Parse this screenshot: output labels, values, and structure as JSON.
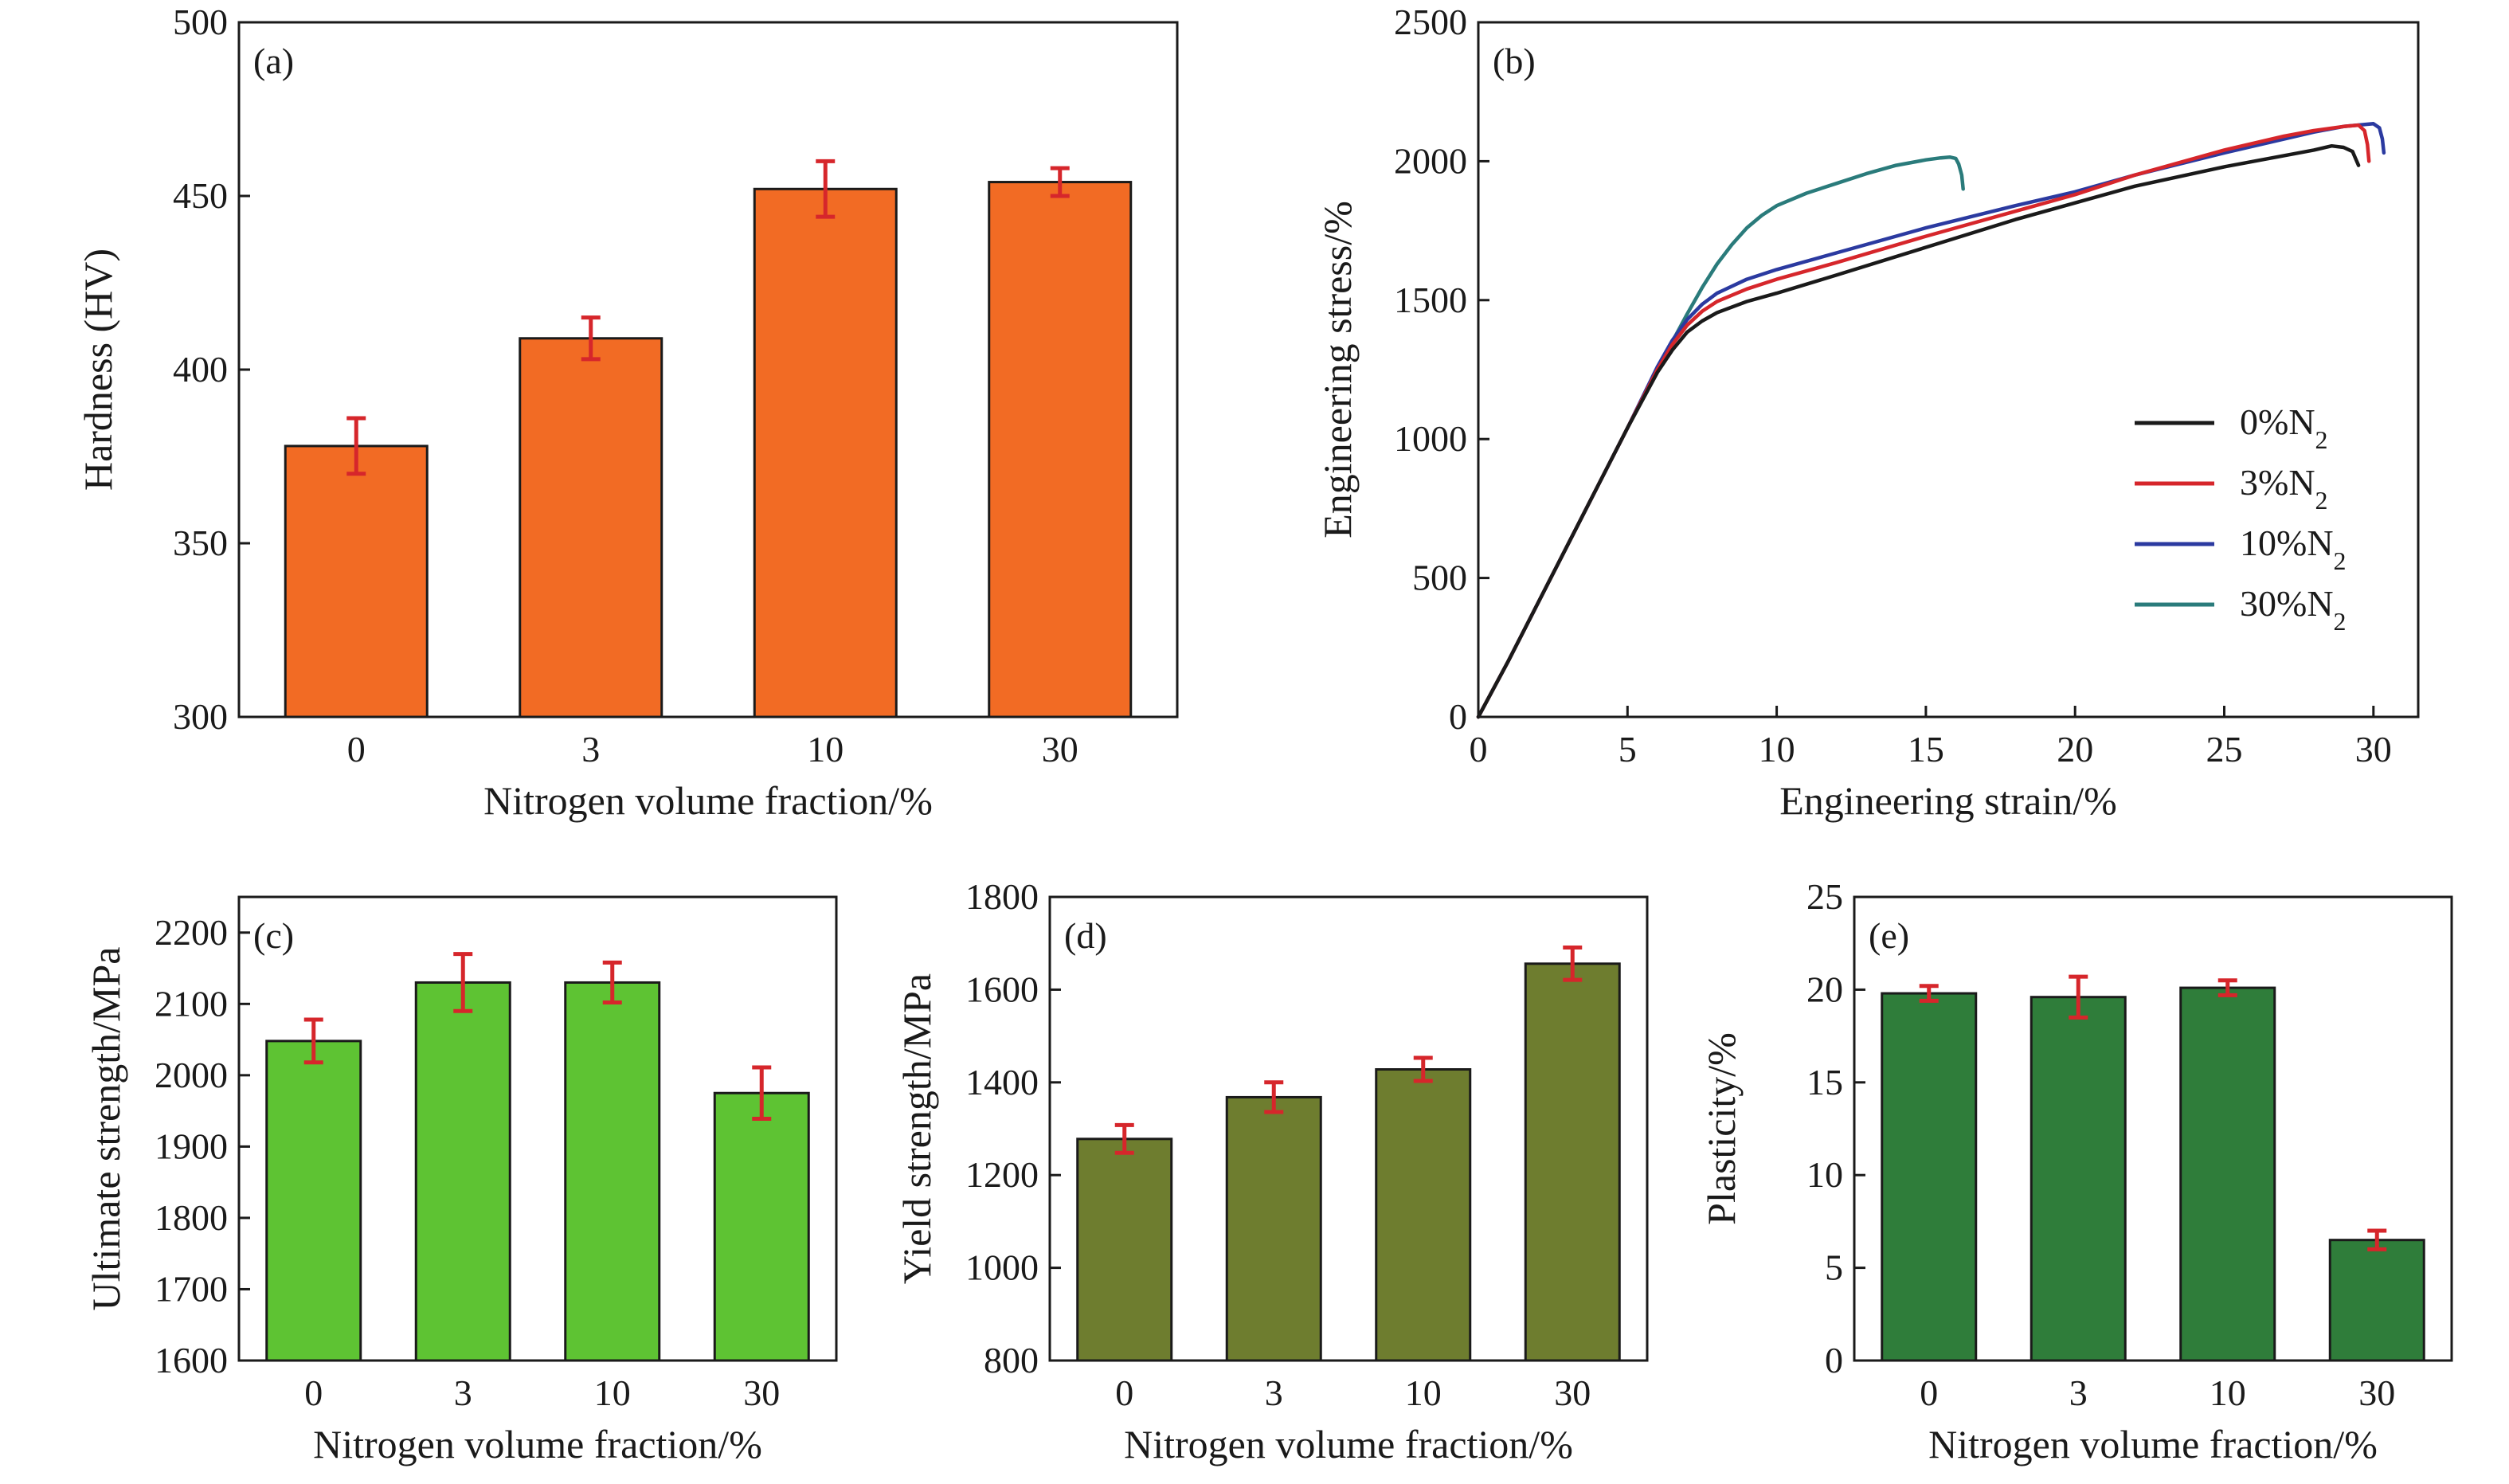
{
  "chart_data": [
    {
      "panel": "(a)",
      "type": "bar",
      "categories": [
        "0",
        "3",
        "10",
        "30"
      ],
      "values": [
        378,
        409,
        452,
        454
      ],
      "errors": [
        8,
        6,
        8,
        4
      ],
      "xlabel": "Nitrogen volume fraction/%",
      "ylabel": "Hardness (HV)",
      "ylim": [
        300,
        500
      ],
      "yticks": [
        300,
        350,
        400,
        450,
        500
      ],
      "bar_color": "#f26b24"
    },
    {
      "panel": "(b)",
      "type": "line",
      "xlabel": "Engineering strain/%",
      "ylabel": "Engineering stress/%",
      "xlim": [
        0,
        31.5
      ],
      "ylim": [
        0,
        2500
      ],
      "xticks": [
        0,
        5,
        10,
        15,
        20,
        25,
        30
      ],
      "yticks": [
        0,
        500,
        1000,
        1500,
        2000,
        2500
      ],
      "legend_position": "lower-right",
      "series": [
        {
          "name": "0%N₂",
          "color": "#1a1a1a",
          "x": [
            0,
            1,
            2,
            3,
            4,
            5,
            6,
            6.5,
            7,
            7.5,
            8,
            9,
            10,
            12,
            15,
            18,
            20,
            22,
            25,
            27,
            28,
            28.6,
            29.0,
            29.3,
            29.4,
            29.5
          ],
          "y": [
            0,
            200,
            410,
            620,
            830,
            1040,
            1240,
            1320,
            1385,
            1425,
            1455,
            1495,
            1525,
            1590,
            1690,
            1790,
            1850,
            1910,
            1980,
            2020,
            2040,
            2055,
            2050,
            2035,
            2010,
            1985
          ]
        },
        {
          "name": "3%N₂",
          "color": "#d6262b",
          "x": [
            0,
            1,
            2,
            3,
            4,
            5,
            6,
            6.5,
            7,
            7.5,
            8,
            9,
            10,
            12,
            15,
            18,
            20,
            22,
            25,
            27,
            28,
            29,
            29.5,
            29.7,
            29.8,
            29.85
          ],
          "y": [
            0,
            200,
            410,
            620,
            830,
            1040,
            1250,
            1340,
            1410,
            1460,
            1495,
            1540,
            1575,
            1635,
            1730,
            1820,
            1880,
            1950,
            2040,
            2090,
            2110,
            2125,
            2130,
            2110,
            2060,
            2000
          ]
        },
        {
          "name": "10%N₂",
          "color": "#2b3aa0",
          "x": [
            0,
            1,
            2,
            3,
            4,
            5,
            6,
            6.5,
            7,
            7.5,
            8,
            9,
            10,
            12,
            15,
            18,
            20,
            22,
            25,
            27,
            28,
            29,
            30,
            30.2,
            30.3,
            30.35
          ],
          "y": [
            0,
            200,
            410,
            620,
            830,
            1040,
            1260,
            1355,
            1430,
            1485,
            1525,
            1575,
            1610,
            1670,
            1760,
            1840,
            1890,
            1950,
            2030,
            2080,
            2105,
            2125,
            2135,
            2120,
            2080,
            2030
          ]
        },
        {
          "name": "30%N₂",
          "color": "#2a7b7b",
          "x": [
            0,
            1,
            2,
            3,
            4,
            5,
            6,
            6.5,
            7,
            7.5,
            8,
            8.5,
            9,
            9.5,
            10,
            11,
            12,
            13,
            14,
            15,
            15.5,
            15.8,
            16.0,
            16.1,
            16.2,
            16.25
          ],
          "y": [
            0,
            200,
            410,
            620,
            830,
            1040,
            1250,
            1350,
            1450,
            1545,
            1630,
            1700,
            1760,
            1805,
            1840,
            1885,
            1920,
            1955,
            1985,
            2005,
            2012,
            2015,
            2010,
            1990,
            1950,
            1900
          ]
        }
      ]
    },
    {
      "panel": "(c)",
      "type": "bar",
      "categories": [
        "0",
        "3",
        "10",
        "30"
      ],
      "values": [
        2048,
        2130,
        2130,
        1975
      ],
      "errors": [
        30,
        40,
        28,
        36
      ],
      "xlabel": "Nitrogen volume fraction/%",
      "ylabel": "Ultimate strength/MPa",
      "ylim": [
        1600,
        2250
      ],
      "yticks": [
        1600,
        1700,
        1800,
        1900,
        2000,
        2100,
        2200
      ],
      "bar_color": "#5ec333"
    },
    {
      "panel": "(d)",
      "type": "bar",
      "categories": [
        "0",
        "3",
        "10",
        "30"
      ],
      "values": [
        1278,
        1368,
        1428,
        1656
      ],
      "errors": [
        30,
        32,
        25,
        35
      ],
      "xlabel": "Nitrogen volume fraction/%",
      "ylabel": "Yield strength/MPa",
      "ylim": [
        800,
        1800
      ],
      "yticks": [
        800,
        1000,
        1200,
        1400,
        1600,
        1800
      ],
      "bar_color": "#6e7d2f"
    },
    {
      "panel": "(e)",
      "type": "bar",
      "categories": [
        "0",
        "3",
        "10",
        "30"
      ],
      "values": [
        19.8,
        19.6,
        20.1,
        6.5
      ],
      "errors": [
        0.4,
        1.1,
        0.4,
        0.5
      ],
      "xlabel": "Nitrogen volume fraction/%",
      "ylabel": "Plasticity/%",
      "ylim": [
        0,
        25
      ],
      "yticks": [
        0,
        5,
        10,
        15,
        20,
        25
      ],
      "bar_color": "#2f7d3a"
    }
  ]
}
